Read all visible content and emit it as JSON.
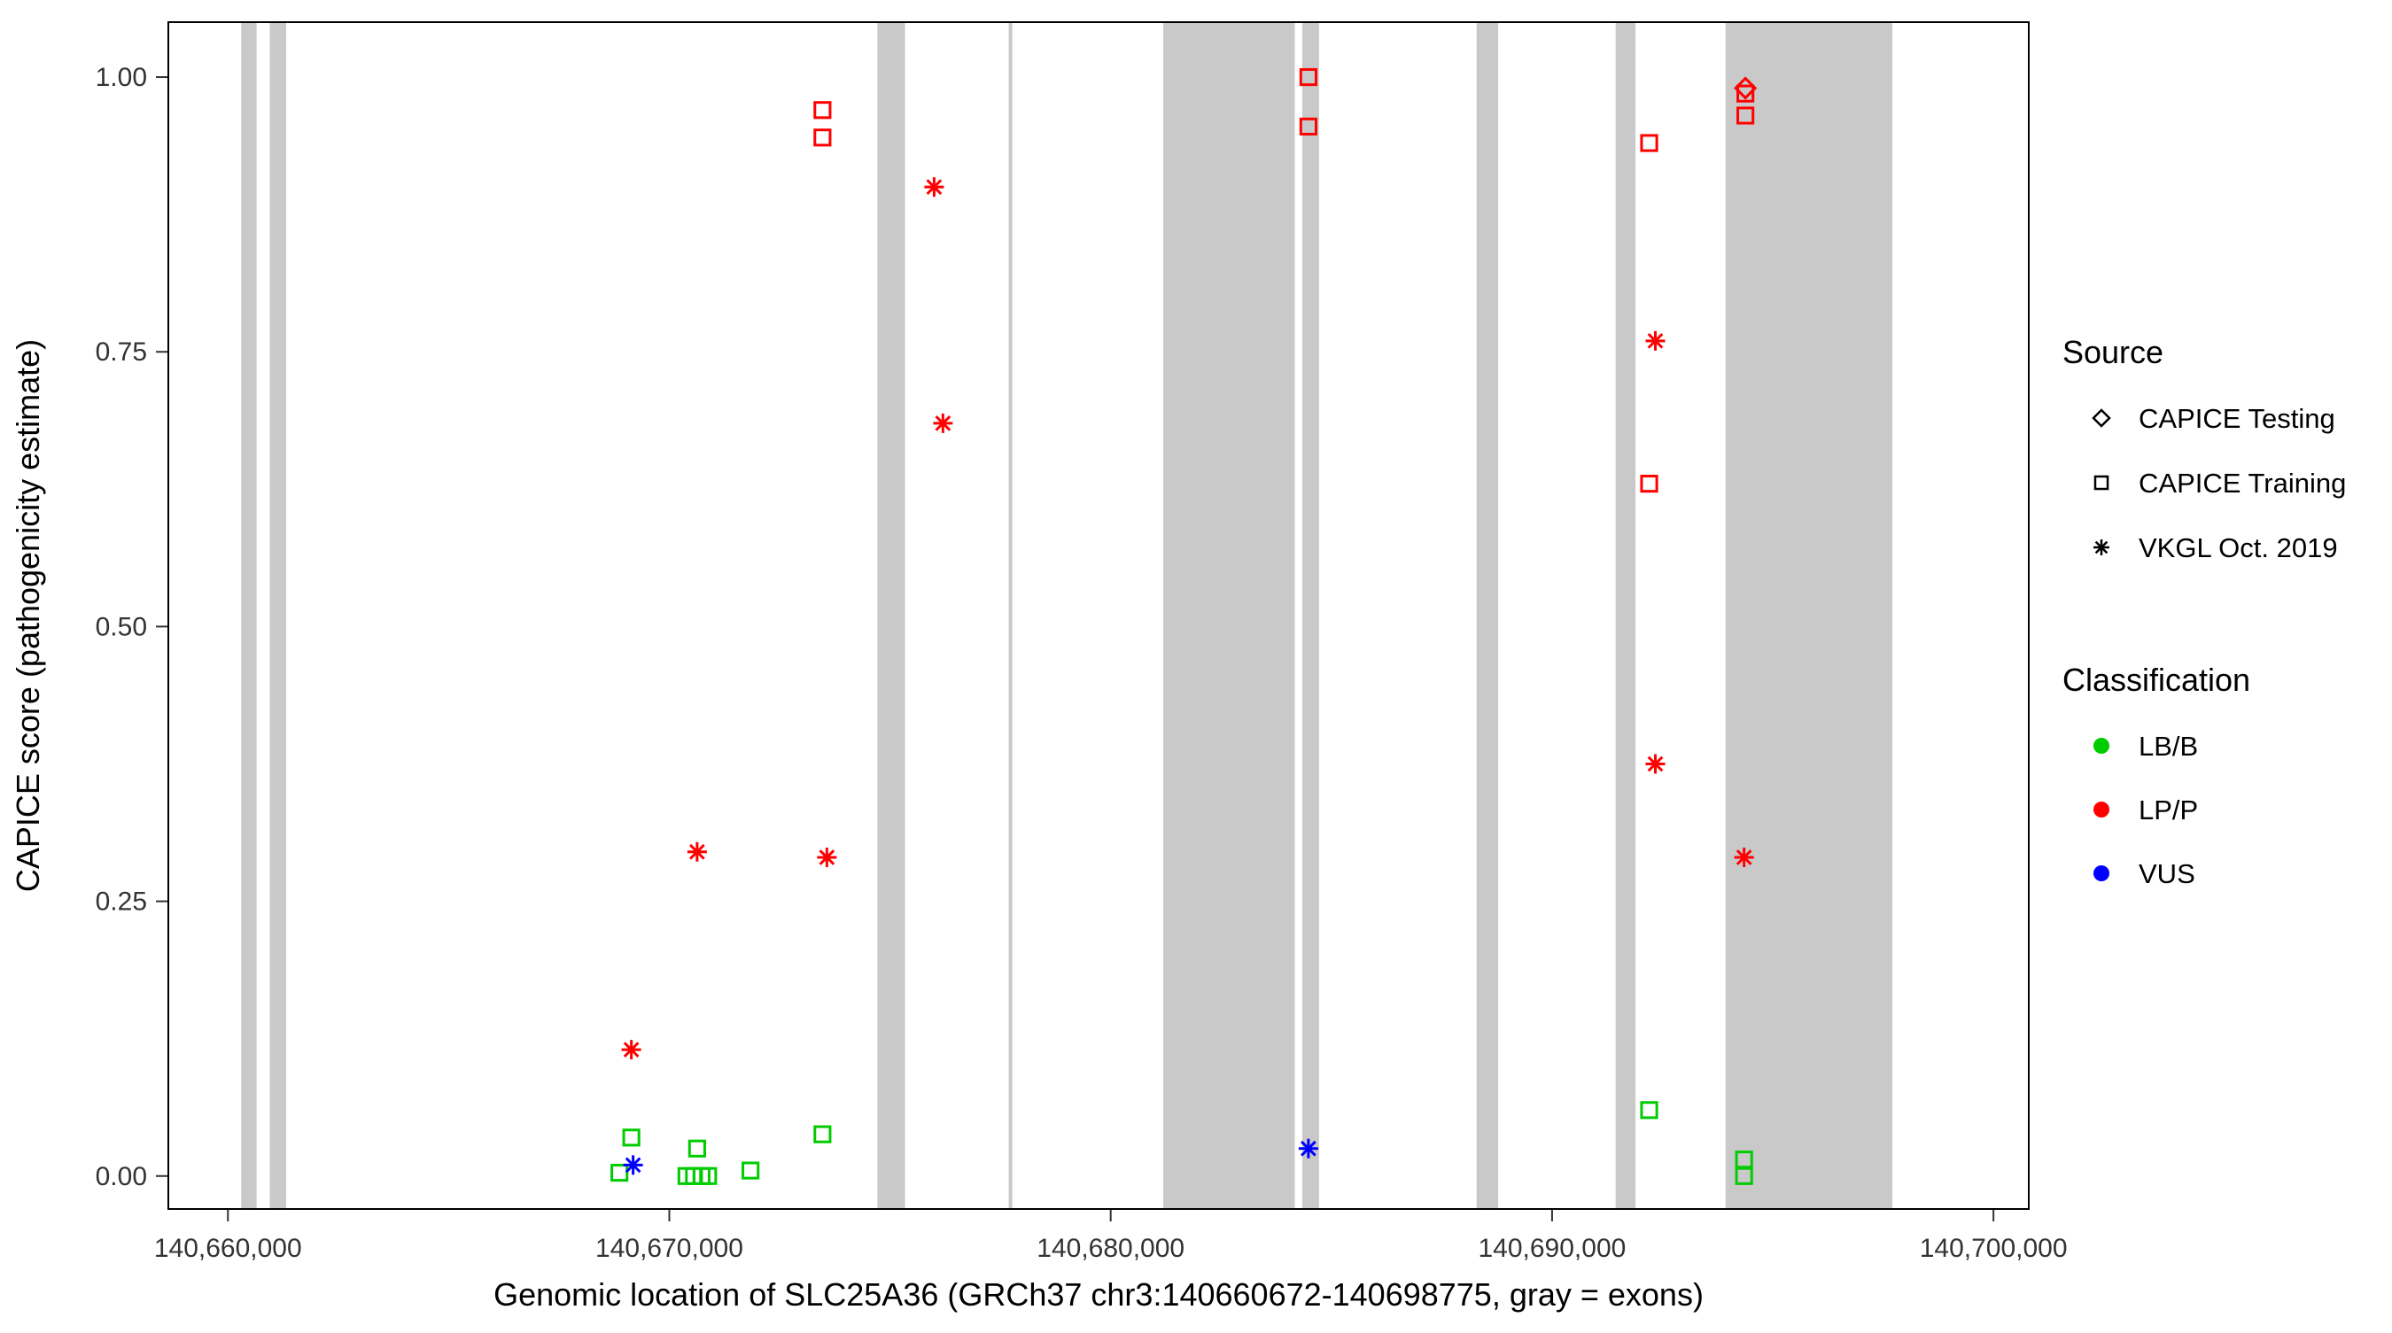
{
  "page": {
    "background": "#FFFFFF"
  },
  "chart_data": {
    "type": "scatter",
    "title": "",
    "xlabel": "Genomic location of SLC25A36 (GRCh37 chr3:140660672-140698775, gray = exons)",
    "ylabel": "CAPICE score (pathogenicity estimate)",
    "xlim": [
      140658650,
      140700800
    ],
    "ylim": [
      -0.03,
      1.05
    ],
    "grid": "off",
    "panel_border_color": "#000000",
    "exon_color": "#C9C9C9",
    "x_ticks": [
      {
        "value": 140660000,
        "label": "140,660,000"
      },
      {
        "value": 140670000,
        "label": "140,670,000"
      },
      {
        "value": 140680000,
        "label": "140,680,000"
      },
      {
        "value": 140690000,
        "label": "140,690,000"
      },
      {
        "value": 140700000,
        "label": "140,700,000"
      }
    ],
    "y_ticks": [
      {
        "value": 0.0,
        "label": "0.00"
      },
      {
        "value": 0.25,
        "label": "0.25"
      },
      {
        "value": 0.5,
        "label": "0.50"
      },
      {
        "value": 0.75,
        "label": "0.75"
      },
      {
        "value": 1.0,
        "label": "1.00"
      }
    ],
    "exons": [
      [
        140660300,
        140660650
      ],
      [
        140660950,
        140661320
      ],
      [
        140674715,
        140675340
      ],
      [
        140677690,
        140677770
      ],
      [
        140681190,
        140684170
      ],
      [
        140684340,
        140684720
      ],
      [
        140688290,
        140688780
      ],
      [
        140691440,
        140691890
      ],
      [
        140693930,
        140697710
      ]
    ],
    "classification_colors": {
      "LB/B": "#00CC00",
      "LP/P": "#FF0000",
      "VUS": "#0000FF"
    },
    "series": [
      {
        "name": "CAPICE Training",
        "shape": "square",
        "points": [
          {
            "x": 140673470,
            "y": 0.97,
            "classification": "LP/P"
          },
          {
            "x": 140673470,
            "y": 0.945,
            "classification": "LP/P"
          },
          {
            "x": 140684480,
            "y": 1.0,
            "classification": "LP/P"
          },
          {
            "x": 140684480,
            "y": 0.955,
            "classification": "LP/P"
          },
          {
            "x": 140692200,
            "y": 0.94,
            "classification": "LP/P"
          },
          {
            "x": 140692200,
            "y": 0.63,
            "classification": "LP/P"
          },
          {
            "x": 140694380,
            "y": 0.985,
            "classification": "LP/P"
          },
          {
            "x": 140694380,
            "y": 0.965,
            "classification": "LP/P"
          },
          {
            "x": 140668870,
            "y": 0.003,
            "classification": "LB/B"
          },
          {
            "x": 140669140,
            "y": 0.035,
            "classification": "LB/B"
          },
          {
            "x": 140670390,
            "y": 0.0,
            "classification": "LB/B"
          },
          {
            "x": 140670560,
            "y": 0.0,
            "classification": "LB/B"
          },
          {
            "x": 140670730,
            "y": 0.0,
            "classification": "LB/B"
          },
          {
            "x": 140670880,
            "y": 0.0,
            "classification": "LB/B"
          },
          {
            "x": 140670630,
            "y": 0.025,
            "classification": "LB/B"
          },
          {
            "x": 140671840,
            "y": 0.005,
            "classification": "LB/B"
          },
          {
            "x": 140673470,
            "y": 0.038,
            "classification": "LB/B"
          },
          {
            "x": 140692200,
            "y": 0.06,
            "classification": "LB/B"
          },
          {
            "x": 140694350,
            "y": 0.015,
            "classification": "LB/B"
          },
          {
            "x": 140694350,
            "y": 0.0,
            "classification": "LB/B"
          }
        ]
      },
      {
        "name": "VKGL Oct. 2019",
        "shape": "asterisk",
        "points": [
          {
            "x": 140669140,
            "y": 0.115,
            "classification": "LP/P"
          },
          {
            "x": 140670630,
            "y": 0.295,
            "classification": "LP/P"
          },
          {
            "x": 140673570,
            "y": 0.29,
            "classification": "LP/P"
          },
          {
            "x": 140676000,
            "y": 0.9,
            "classification": "LP/P"
          },
          {
            "x": 140676200,
            "y": 0.685,
            "classification": "LP/P"
          },
          {
            "x": 140692340,
            "y": 0.76,
            "classification": "LP/P"
          },
          {
            "x": 140692340,
            "y": 0.375,
            "classification": "LP/P"
          },
          {
            "x": 140694350,
            "y": 0.29,
            "classification": "LP/P"
          },
          {
            "x": 140669180,
            "y": 0.01,
            "classification": "VUS"
          },
          {
            "x": 140684480,
            "y": 0.025,
            "classification": "VUS"
          }
        ]
      },
      {
        "name": "CAPICE Testing",
        "shape": "diamond",
        "points": [
          {
            "x": 140694380,
            "y": 0.99,
            "classification": "LP/P"
          }
        ]
      }
    ],
    "legend": {
      "source_title": "Source",
      "source_items": [
        {
          "label": "CAPICE Testing",
          "shape": "diamond"
        },
        {
          "label": "CAPICE Training",
          "shape": "square"
        },
        {
          "label": "VKGL Oct. 2019",
          "shape": "asterisk"
        }
      ],
      "classification_title": "Classification",
      "classification_items": [
        {
          "label": "LB/B",
          "color": "#00CC00"
        },
        {
          "label": "LP/P",
          "color": "#FF0000"
        },
        {
          "label": "VUS",
          "color": "#0000FF"
        }
      ]
    }
  }
}
